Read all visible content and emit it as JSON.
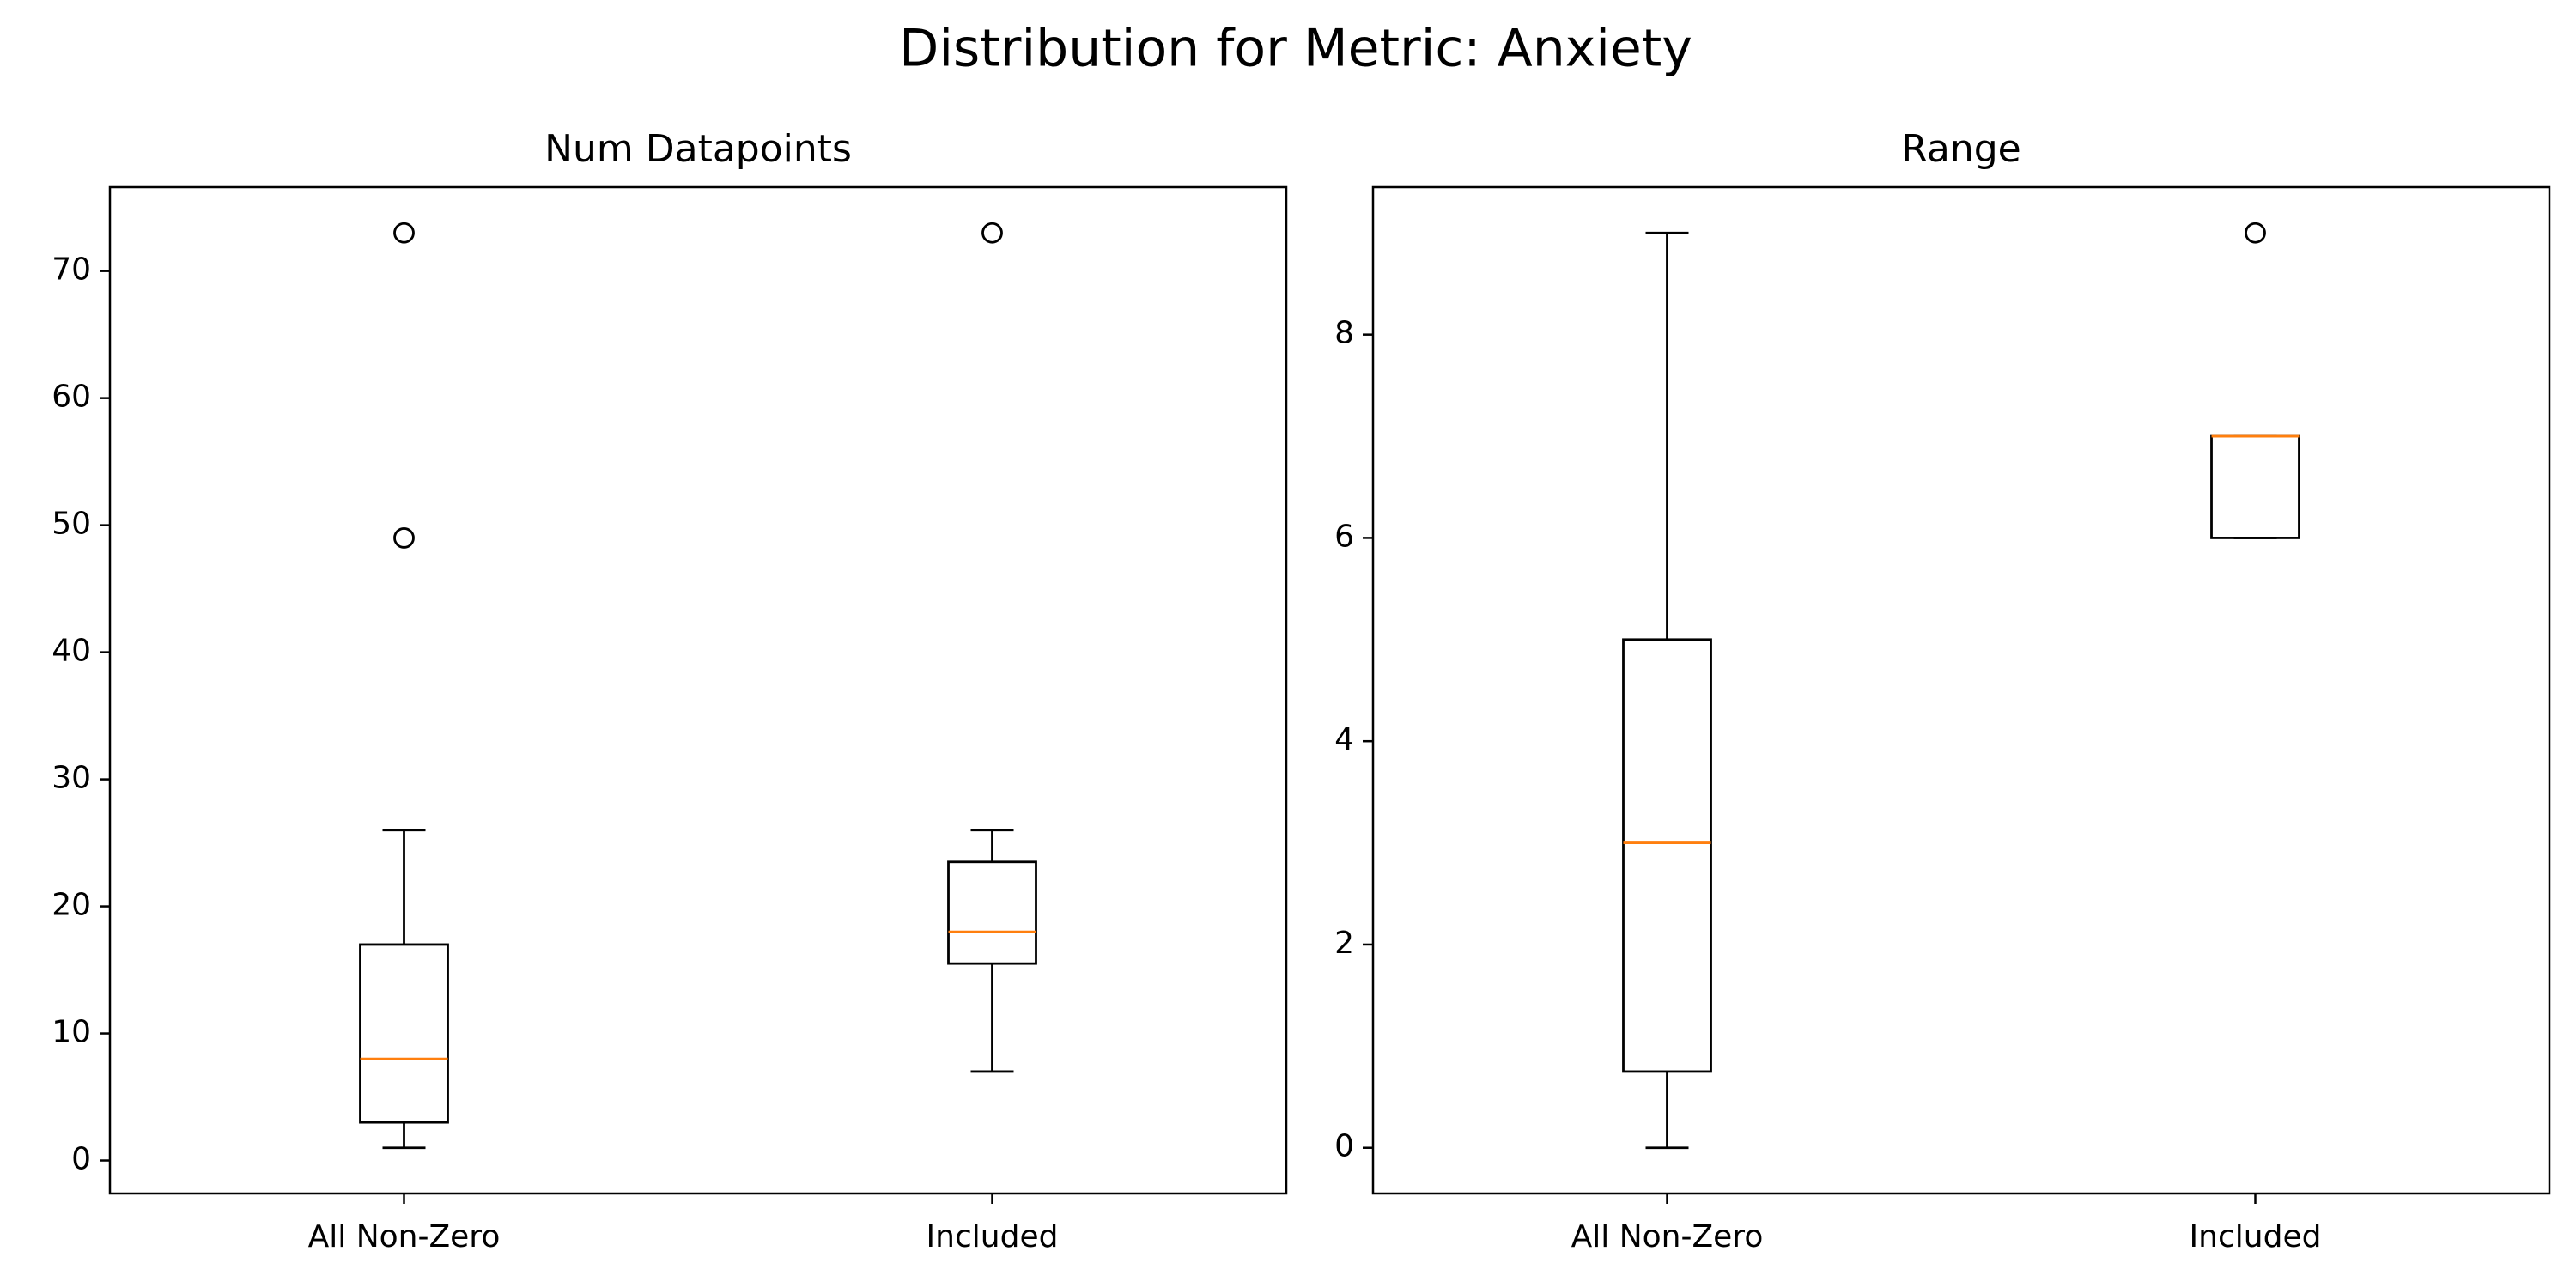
{
  "figure": {
    "title": "Distribution for Metric: Anxiety"
  },
  "colors": {
    "box": "#000000",
    "median": "#ff7f0e",
    "background": "#ffffff"
  },
  "chart_data": [
    {
      "type": "boxplot",
      "title": "Num Datapoints",
      "xlabel": "",
      "ylabel": "",
      "categories": [
        "All Non-Zero",
        "Included"
      ],
      "yticks": [
        0,
        10,
        20,
        30,
        40,
        50,
        60,
        70
      ],
      "ylim": [
        -2.6,
        76.6
      ],
      "grid": false,
      "boxes": [
        {
          "label": "All Non-Zero",
          "whisker_low": 1,
          "q1": 3,
          "median": 8,
          "q3": 17,
          "whisker_high": 26,
          "outliers": [
            49,
            73
          ]
        },
        {
          "label": "Included",
          "whisker_low": 7,
          "q1": 15.5,
          "median": 18,
          "q3": 23.5,
          "whisker_high": 26,
          "outliers": [
            73
          ]
        }
      ]
    },
    {
      "type": "boxplot",
      "title": "Range",
      "xlabel": "",
      "ylabel": "",
      "categories": [
        "All Non-Zero",
        "Included"
      ],
      "yticks": [
        0,
        2,
        4,
        6,
        8
      ],
      "ylim": [
        -0.45,
        9.45
      ],
      "grid": false,
      "boxes": [
        {
          "label": "All Non-Zero",
          "whisker_low": 0,
          "q1": 0.75,
          "median": 3,
          "q3": 5,
          "whisker_high": 9,
          "outliers": []
        },
        {
          "label": "Included",
          "whisker_low": 6,
          "q1": 6,
          "median": 7,
          "q3": 7,
          "whisker_high": 7,
          "outliers": [
            9
          ]
        }
      ]
    }
  ]
}
